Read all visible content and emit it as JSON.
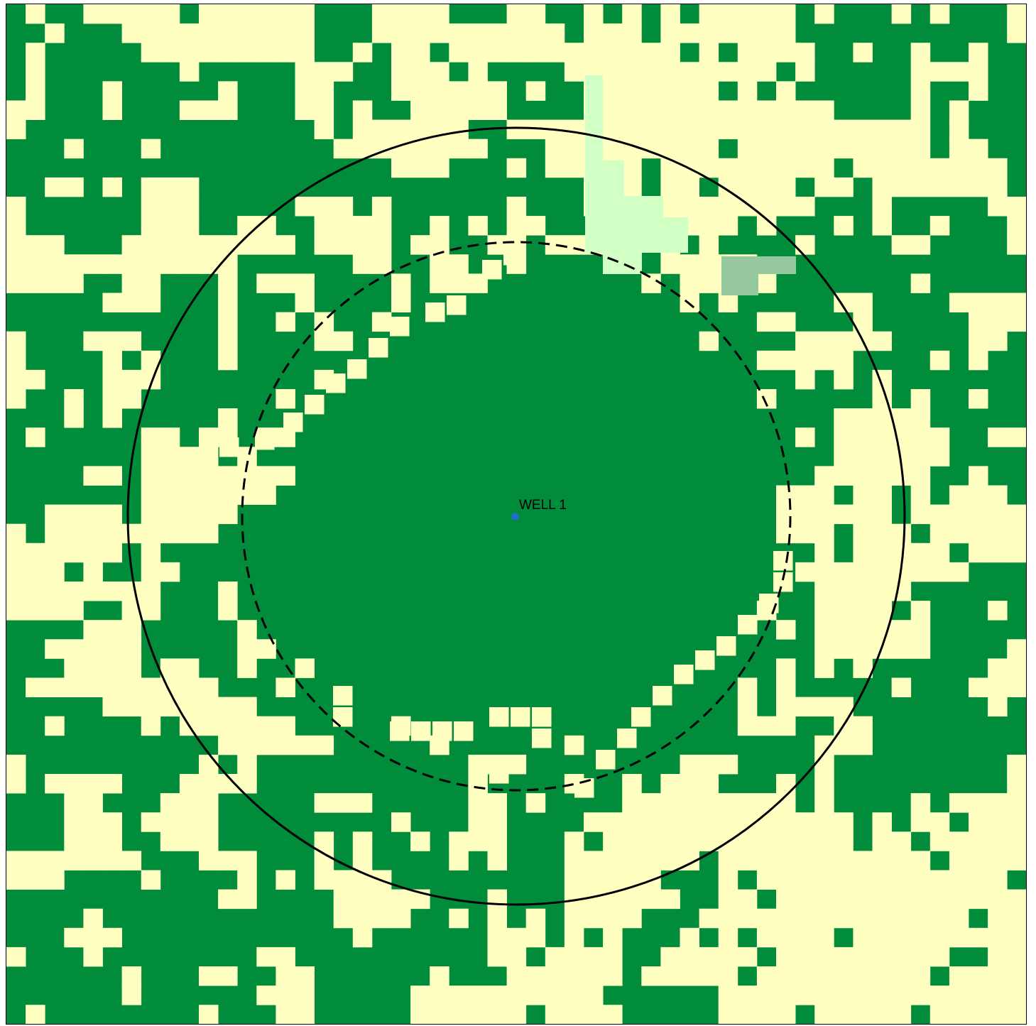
{
  "map": {
    "colors": {
      "vegetation": "#008c3a",
      "open_land": "#ffffc2",
      "light_green_patch": "#d2ffc4",
      "pale_green_patch": "#96c8a0",
      "ring_stroke": "#000000",
      "well_marker": "#1f6bd8"
    },
    "rings": [
      {
        "name": "outer-ring",
        "style": "solid"
      },
      {
        "name": "inner-ring",
        "style": "dashed"
      }
    ],
    "well": {
      "label": "WELL 1",
      "icon": "square-point-icon"
    }
  }
}
